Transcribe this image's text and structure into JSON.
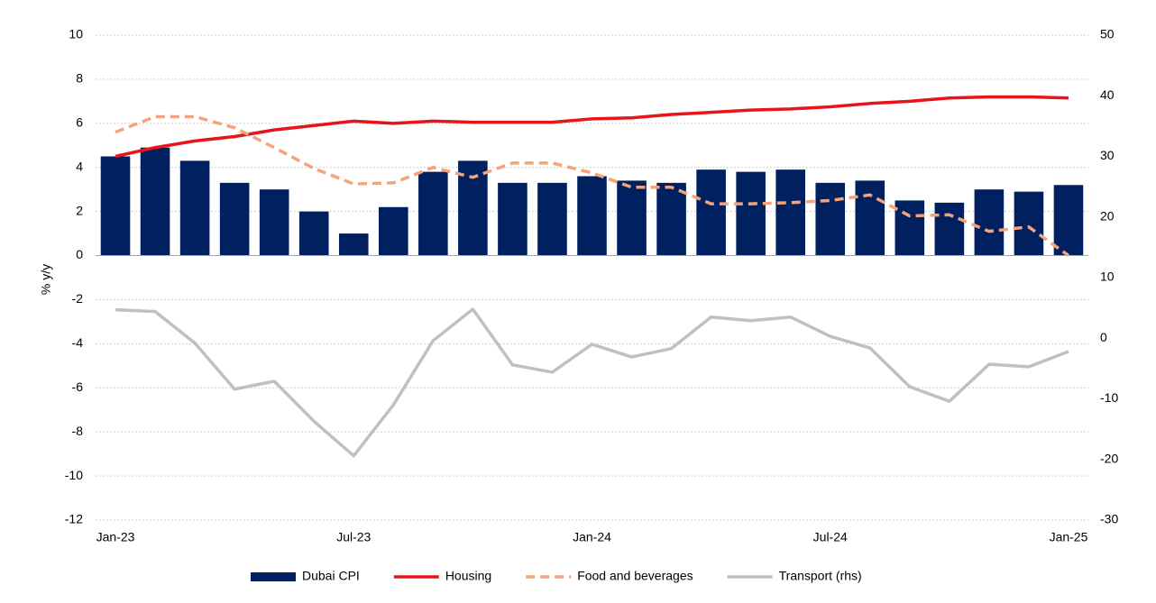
{
  "chart_data": {
    "type": "bar",
    "y_label": "% y/y",
    "categories": [
      "Jan-23",
      null,
      null,
      null,
      null,
      null,
      "Jul-23",
      null,
      null,
      null,
      null,
      null,
      "Jan-24",
      null,
      null,
      null,
      null,
      null,
      "Jul-24",
      null,
      null,
      null,
      null,
      null,
      "Jan-25"
    ],
    "series": [
      {
        "name": "Dubai CPI",
        "type": "bar",
        "color": "#002060",
        "values": [
          4.5,
          4.9,
          4.3,
          3.3,
          3.0,
          2.0,
          1.0,
          2.2,
          3.8,
          4.3,
          3.3,
          3.3,
          3.6,
          3.4,
          3.3,
          3.9,
          3.8,
          3.9,
          3.3,
          3.4,
          2.5,
          2.4,
          3.0,
          2.9,
          3.2
        ]
      },
      {
        "name": "Housing",
        "type": "line",
        "color": "#e8141b",
        "line_style": "solid",
        "values": [
          4.5,
          4.9,
          5.2,
          5.4,
          5.7,
          5.9,
          6.1,
          6.0,
          6.1,
          6.05,
          6.05,
          6.05,
          6.2,
          6.25,
          6.4,
          6.5,
          6.6,
          6.65,
          6.75,
          6.9,
          7.0,
          7.15,
          7.2,
          7.2,
          7.15
        ]
      },
      {
        "name": "Food and beverages",
        "type": "line",
        "color": "#f4a37a",
        "line_style": "dashed",
        "values": [
          5.6,
          6.3,
          6.3,
          5.8,
          4.9,
          3.95,
          3.25,
          3.3,
          4.0,
          3.55,
          4.2,
          4.2,
          3.75,
          3.1,
          3.1,
          2.35,
          2.35,
          2.4,
          2.5,
          2.75,
          1.8,
          1.85,
          1.1,
          1.3,
          0.0
        ]
      },
      {
        "name": "Transport (rhs)",
        "type": "line",
        "color": "#c0c0c0",
        "line_style": "solid",
        "axis": "y2",
        "values": [
          4.7,
          4.4,
          -0.8,
          -8.4,
          -7.1,
          -13.7,
          -19.4,
          -11.0,
          -0.4,
          4.8,
          -4.4,
          -5.6,
          -1.0,
          -3.1,
          -1.7,
          3.5,
          2.9,
          3.5,
          0.3,
          -1.6,
          -8.0,
          -10.4,
          -4.3,
          -4.7,
          -2.2
        ]
      }
    ],
    "ylim": [
      -12,
      10
    ],
    "yticks": [
      -12,
      -10,
      -8,
      -6,
      -4,
      -2,
      0,
      2,
      4,
      6,
      8,
      10
    ],
    "y2lim": [
      -30,
      50
    ],
    "y2ticks": [
      -30,
      -20,
      -10,
      0,
      10,
      20,
      30,
      40,
      50
    ],
    "grid": true,
    "legend": "bottom"
  }
}
